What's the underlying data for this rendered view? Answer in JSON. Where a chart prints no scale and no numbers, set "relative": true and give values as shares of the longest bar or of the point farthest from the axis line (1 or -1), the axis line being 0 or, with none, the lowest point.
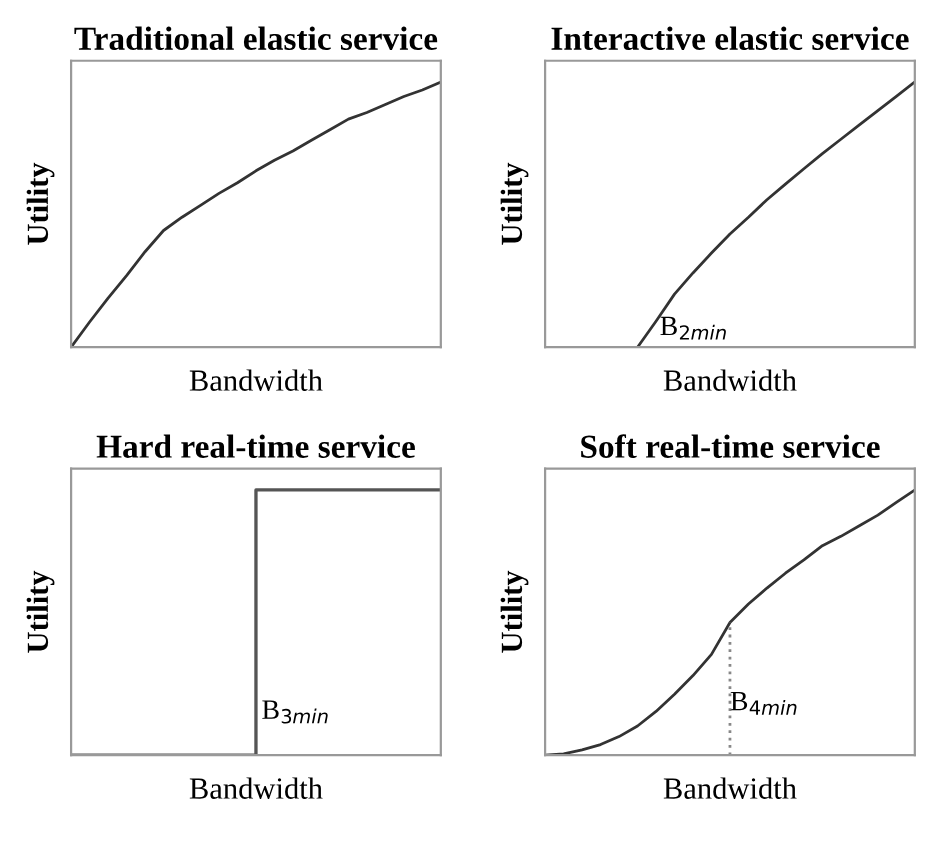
{
  "chart_data": [
    {
      "type": "line",
      "title": "Traditional elastic service",
      "xlabel": "Bandwidth",
      "ylabel": "Utility",
      "relative": true,
      "tick_labels": false,
      "categories": [
        null,
        null,
        null,
        null,
        null,
        null,
        null,
        null,
        null,
        null,
        null,
        null,
        null,
        null,
        null,
        null,
        null,
        null,
        null,
        null,
        null
      ],
      "series": [
        {
          "color": "#333333",
          "values": [
            0,
            0.095,
            0.185,
            0.27,
            0.36,
            0.44,
            0.49,
            0.535,
            0.58,
            0.62,
            0.665,
            0.705,
            0.74,
            0.78,
            0.82,
            0.86,
            0.885,
            0.915,
            0.945,
            0.97,
            1
          ]
        }
      ]
    },
    {
      "type": "line",
      "title": "Interactive elastic service",
      "xlabel": "Bandwidth",
      "ylabel": "Utility",
      "relative": true,
      "tick_labels": false,
      "categories": [
        null,
        null,
        null,
        null,
        null,
        null,
        null,
        null,
        null,
        null,
        null,
        null,
        null,
        null,
        null,
        null,
        null,
        null,
        null,
        null,
        null
      ],
      "annotations": [
        "B$_{2min}$"
      ],
      "series": [
        {
          "color": "#333333",
          "values": [
            null,
            null,
            null,
            null,
            null,
            0,
            0.098,
            0.2,
            0.28,
            0.355,
            0.427,
            0.49,
            0.556,
            0.615,
            0.673,
            0.73,
            0.784,
            0.838,
            0.892,
            0.946,
            1
          ]
        }
      ]
    },
    {
      "type": "step",
      "title": "Hard real-time service",
      "xlabel": "Bandwidth",
      "ylabel": "Utility",
      "relative": true,
      "tick_labels": false,
      "categories": [
        null,
        null,
        null,
        null,
        null,
        null,
        null,
        null,
        null,
        null,
        null,
        null,
        null,
        null,
        null,
        null,
        null,
        null,
        null,
        null,
        null
      ],
      "annotations": [
        "B$_{3min}$"
      ],
      "series": [
        {
          "color": "#555555",
          "values": [
            0,
            0,
            0,
            0,
            0,
            0,
            0,
            0,
            0,
            0,
            1,
            1,
            1,
            1,
            1,
            1,
            1,
            1,
            1,
            1,
            1
          ]
        }
      ]
    },
    {
      "type": "line",
      "title": "Soft real-time service",
      "xlabel": "Bandwidth",
      "ylabel": "Utility",
      "relative": true,
      "tick_labels": false,
      "categories": [
        null,
        null,
        null,
        null,
        null,
        null,
        null,
        null,
        null,
        null,
        null,
        null,
        null,
        null,
        null,
        null,
        null,
        null,
        null,
        null,
        null
      ],
      "annotations": [
        "B$_{4min}$"
      ],
      "series": [
        {
          "color": "#333333",
          "values": [
            0,
            0.005,
            0.02,
            0.04,
            0.07,
            0.11,
            0.165,
            0.23,
            0.3,
            0.38,
            0.5,
            0.57,
            0.63,
            0.686,
            0.736,
            0.79,
            0.825,
            0.865,
            0.905,
            0.953,
            1
          ]
        }
      ]
    }
  ]
}
